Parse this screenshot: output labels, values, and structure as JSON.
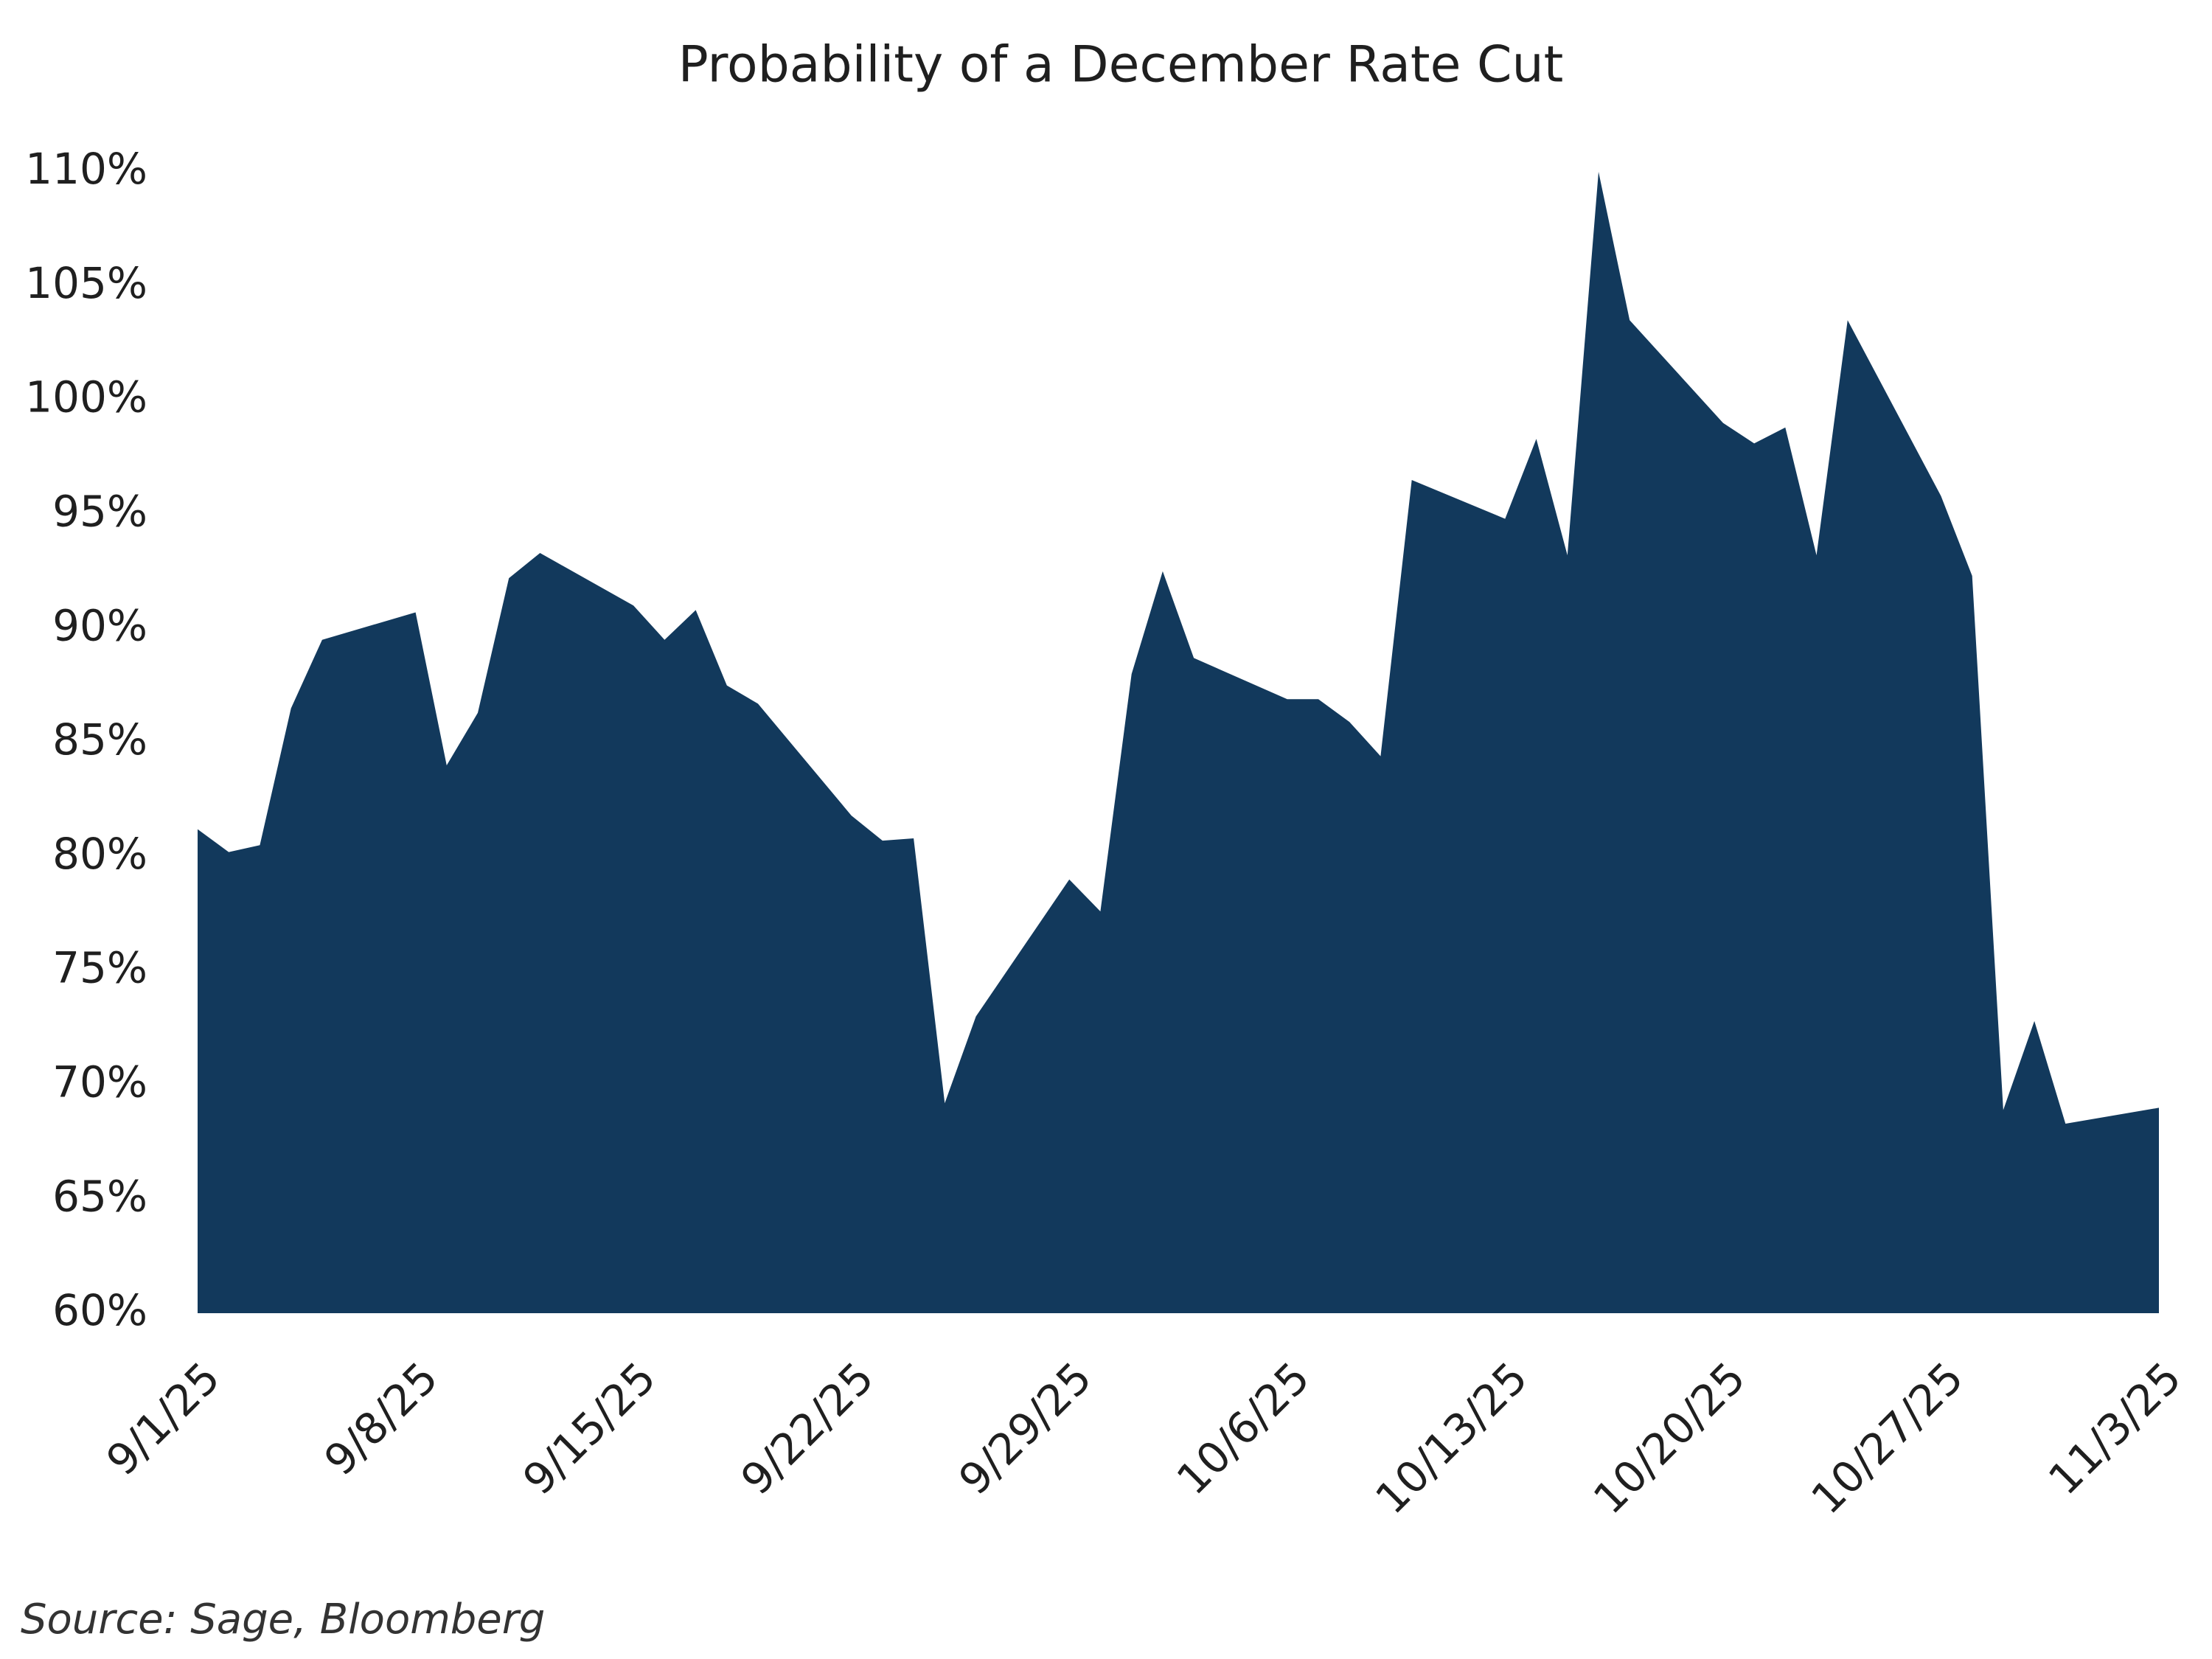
{
  "chart_data": {
    "type": "area",
    "title": "Probability of a December Rate Cut",
    "source": "Source: Sage, Bloomberg",
    "color": "#12395c",
    "x": [
      "9/1/25",
      "9/2/25",
      "9/3/25",
      "9/4/25",
      "9/5/25",
      "9/8/25",
      "9/9/25",
      "9/10/25",
      "9/11/25",
      "9/12/25",
      "9/15/25",
      "9/16/25",
      "9/17/25",
      "9/18/25",
      "9/19/25",
      "9/22/25",
      "9/23/25",
      "9/24/25",
      "9/25/25",
      "9/26/25",
      "9/29/25",
      "9/30/25",
      "10/1/25",
      "10/2/25",
      "10/3/25",
      "10/6/25",
      "10/7/25",
      "10/8/25",
      "10/9/25",
      "10/10/25",
      "10/13/25",
      "10/14/25",
      "10/15/25",
      "10/16/25",
      "10/17/25",
      "10/20/25",
      "10/21/25",
      "10/22/25",
      "10/23/25",
      "10/24/25",
      "10/27/25",
      "10/28/25",
      "10/29/25",
      "10/30/25",
      "10/31/25",
      "11/3/25"
    ],
    "values": [
      81.2,
      80.2,
      80.5,
      86.5,
      89.5,
      90.7,
      84.0,
      86.3,
      92.2,
      93.3,
      91.0,
      89.5,
      90.8,
      87.5,
      86.7,
      81.8,
      80.7,
      80.8,
      69.2,
      73.0,
      79.0,
      77.6,
      88.0,
      92.5,
      88.7,
      86.9,
      86.9,
      85.9,
      84.4,
      96.5,
      94.8,
      98.3,
      93.2,
      110.0,
      103.5,
      99.0,
      98.1,
      98.8,
      93.2,
      103.5,
      95.8,
      92.3,
      68.9,
      72.8,
      68.3,
      69.0
    ],
    "xlim": [
      "9/1/25",
      "11/3/25"
    ],
    "xticks": [
      "9/1/25",
      "9/8/25",
      "9/15/25",
      "9/22/25",
      "9/29/25",
      "10/6/25",
      "10/13/25",
      "10/20/25",
      "10/27/25",
      "11/3/25"
    ],
    "ylim": [
      60,
      110
    ],
    "yticks": [
      {
        "value": 60,
        "label": "60%"
      },
      {
        "value": 65,
        "label": "65%"
      },
      {
        "value": 70,
        "label": "70%"
      },
      {
        "value": 75,
        "label": "75%"
      },
      {
        "value": 80,
        "label": "80%"
      },
      {
        "value": 85,
        "label": "85%"
      },
      {
        "value": 90,
        "label": "90%"
      },
      {
        "value": 95,
        "label": "95%"
      },
      {
        "value": 100,
        "label": "100%"
      },
      {
        "value": 105,
        "label": "105%"
      },
      {
        "value": 110,
        "label": "110%"
      }
    ],
    "grid": false
  }
}
